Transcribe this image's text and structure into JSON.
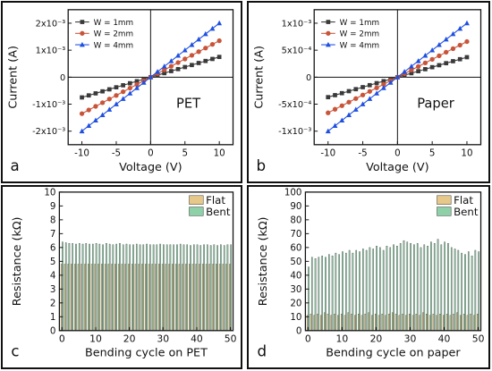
{
  "chart_data": [
    {
      "id": "a",
      "type": "line",
      "panel_label": "a",
      "annotation": "PET",
      "xlabel": "Voltage (V)",
      "ylabel": "Current (A)",
      "xlim": [
        -12,
        12
      ],
      "ylim": [
        -0.0025,
        0.0025
      ],
      "xticks": [
        -10,
        -5,
        0,
        5,
        10
      ],
      "xtick_labels": [
        "-10",
        "-5",
        "0",
        "5",
        "10"
      ],
      "yticks": [
        -0.002,
        -0.001,
        0,
        0.001,
        0.002
      ],
      "ytick_labels": [
        "-2x10⁻³",
        "-1x10⁻³",
        "0",
        "1x10⁻³",
        "2x10⁻³"
      ],
      "legend_position": "top-left",
      "x": [
        -10,
        -9,
        -8,
        -7,
        -6,
        -5,
        -4,
        -3,
        -2,
        -1,
        0,
        1,
        2,
        3,
        4,
        5,
        6,
        7,
        8,
        9,
        10
      ],
      "series": [
        {
          "name": "W = 1mm",
          "color": "#3a3a3a",
          "marker": "square",
          "values": [
            -0.00075,
            -0.000675,
            -0.0006,
            -0.000525,
            -0.00045,
            -0.000375,
            -0.0003,
            -0.000225,
            -0.00015,
            -7.5e-05,
            0,
            7.5e-05,
            0.00015,
            0.000225,
            0.0003,
            0.000375,
            0.00045,
            0.000525,
            0.0006,
            0.000675,
            0.00075
          ]
        },
        {
          "name": "W = 2mm",
          "color": "#c8553a",
          "marker": "circle",
          "values": [
            -0.00135,
            -0.001215,
            -0.00108,
            -0.000945,
            -0.00081,
            -0.000675,
            -0.00054,
            -0.000405,
            -0.00027,
            -0.000135,
            0,
            0.000135,
            0.00027,
            0.000405,
            0.00054,
            0.000675,
            0.00081,
            0.000945,
            0.00108,
            0.001215,
            0.00135
          ]
        },
        {
          "name": "W = 4mm",
          "color": "#1f50e0",
          "marker": "triangle",
          "values": [
            -0.002,
            -0.0018,
            -0.0016,
            -0.0014,
            -0.0012,
            -0.001,
            -0.0008,
            -0.0006,
            -0.0004,
            -0.0002,
            0,
            0.0002,
            0.0004,
            0.0006,
            0.0008,
            0.001,
            0.0012,
            0.0014,
            0.0016,
            0.0018,
            0.002
          ]
        }
      ]
    },
    {
      "id": "b",
      "type": "line",
      "panel_label": "b",
      "annotation": "Paper",
      "xlabel": "Voltage (V)",
      "ylabel": "Current (A)",
      "xlim": [
        -12,
        12
      ],
      "ylim": [
        -0.00125,
        0.00125
      ],
      "xticks": [
        -10,
        -5,
        0,
        5,
        10
      ],
      "xtick_labels": [
        "-10",
        "-5",
        "0",
        "5",
        "10"
      ],
      "yticks": [
        -0.001,
        -0.0005,
        0,
        0.0005,
        0.001
      ],
      "ytick_labels": [
        "-1x10⁻³",
        "-5x10⁻⁴",
        "0",
        "5x10⁻⁴",
        "1x10⁻³"
      ],
      "legend_position": "top-left",
      "x": [
        -10,
        -9,
        -8,
        -7,
        -6,
        -5,
        -4,
        -3,
        -2,
        -1,
        0,
        1,
        2,
        3,
        4,
        5,
        6,
        7,
        8,
        9,
        10
      ],
      "series": [
        {
          "name": "W = 1mm",
          "color": "#3a3a3a",
          "marker": "square",
          "values": [
            -0.00037,
            -0.000333,
            -0.000296,
            -0.000259,
            -0.000222,
            -0.000185,
            -0.000148,
            -0.000111,
            -7.4e-05,
            -3.7e-05,
            0,
            3.7e-05,
            7.4e-05,
            0.000111,
            0.000148,
            0.000185,
            0.000222,
            0.000259,
            0.000296,
            0.000333,
            0.00037
          ]
        },
        {
          "name": "W = 2mm",
          "color": "#c8553a",
          "marker": "circle",
          "values": [
            -0.00066,
            -0.000594,
            -0.000528,
            -0.000462,
            -0.000396,
            -0.00033,
            -0.000264,
            -0.000198,
            -0.000132,
            -6.6e-05,
            0,
            6.6e-05,
            0.000132,
            0.000198,
            0.000264,
            0.00033,
            0.000396,
            0.000462,
            0.000528,
            0.000594,
            0.00066
          ]
        },
        {
          "name": "W = 4mm",
          "color": "#1f50e0",
          "marker": "triangle",
          "values": [
            -0.001,
            -0.0009,
            -0.0008,
            -0.0007,
            -0.0006,
            -0.0005,
            -0.0004,
            -0.0003,
            -0.0002,
            -0.0001,
            0,
            0.0001,
            0.0002,
            0.0003,
            0.0004,
            0.0005,
            0.0006,
            0.0007,
            0.0008,
            0.0009,
            0.001
          ]
        }
      ]
    },
    {
      "id": "c",
      "type": "bar",
      "panel_label": "c",
      "xlabel": "Bending cycle on PET",
      "ylabel": "Resistance (kΩ)",
      "xlim": [
        0,
        50
      ],
      "ylim": [
        0,
        10
      ],
      "xticks": [
        0,
        10,
        20,
        30,
        40,
        50
      ],
      "yticks": [
        0,
        1,
        2,
        3,
        4,
        5,
        6,
        7,
        8,
        9,
        10
      ],
      "legend_position": "top-right",
      "series": [
        {
          "name": "Flat",
          "color": "#e6c98a",
          "values": [
            4.8,
            4.8,
            4.8,
            4.8,
            4.8,
            4.8,
            4.8,
            4.8,
            4.8,
            4.8,
            4.8,
            4.8,
            4.8,
            4.8,
            4.8,
            4.8,
            4.8,
            4.8,
            4.8,
            4.8,
            4.8,
            4.8,
            4.8,
            4.8,
            4.8,
            4.8,
            4.8,
            4.8,
            4.8,
            4.8,
            4.8,
            4.8,
            4.8,
            4.8,
            4.8,
            4.8,
            4.8,
            4.8,
            4.8,
            4.8,
            4.8,
            4.8,
            4.8,
            4.8,
            4.8,
            4.8,
            4.8,
            4.8,
            4.8,
            4.8,
            4.8
          ]
        },
        {
          "name": "Bent",
          "color": "#8ed1a8",
          "values": [
            6.4,
            6.35,
            6.3,
            6.3,
            6.25,
            6.3,
            6.25,
            6.3,
            6.25,
            6.25,
            6.3,
            6.25,
            6.2,
            6.3,
            6.25,
            6.2,
            6.25,
            6.3,
            6.2,
            6.25,
            6.2,
            6.2,
            6.25,
            6.2,
            6.2,
            6.25,
            6.2,
            6.2,
            6.2,
            6.25,
            6.2,
            6.2,
            6.2,
            6.2,
            6.2,
            6.25,
            6.2,
            6.2,
            6.15,
            6.2,
            6.2,
            6.15,
            6.2,
            6.2,
            6.15,
            6.2,
            6.15,
            6.2,
            6.15,
            6.2,
            6.2
          ]
        }
      ]
    },
    {
      "id": "d",
      "type": "bar",
      "panel_label": "d",
      "xlabel": "Bending cycle on paper",
      "ylabel": "Resistance (kΩ)",
      "xlim": [
        0,
        50
      ],
      "ylim": [
        0,
        100
      ],
      "xticks": [
        0,
        10,
        20,
        30,
        40,
        50
      ],
      "yticks": [
        0,
        10,
        20,
        30,
        40,
        50,
        60,
        70,
        80,
        90,
        100
      ],
      "legend_position": "top-right",
      "series": [
        {
          "name": "Flat",
          "color": "#e6c98a",
          "values": [
            11,
            12,
            11,
            12,
            11,
            13,
            12,
            11,
            12,
            11,
            12,
            11,
            13,
            12,
            11,
            12,
            11,
            12,
            13,
            11,
            12,
            11,
            12,
            11,
            12,
            13,
            12,
            11,
            12,
            11,
            12,
            11,
            12,
            11,
            13,
            12,
            11,
            12,
            11,
            12,
            11,
            12,
            11,
            12,
            13,
            11,
            12,
            11,
            12,
            11,
            12
          ]
        },
        {
          "name": "Bent",
          "color": "#8ed1a8",
          "values": [
            46,
            53,
            52,
            53,
            54,
            53,
            55,
            54,
            56,
            55,
            57,
            56,
            58,
            56,
            58,
            57,
            59,
            58,
            60,
            59,
            61,
            60,
            58,
            61,
            60,
            62,
            61,
            63,
            65,
            64,
            63,
            62,
            63,
            60,
            62,
            61,
            64,
            63,
            66,
            62,
            64,
            63,
            60,
            59,
            58,
            56,
            55,
            57,
            54,
            58,
            57
          ]
        }
      ]
    }
  ]
}
